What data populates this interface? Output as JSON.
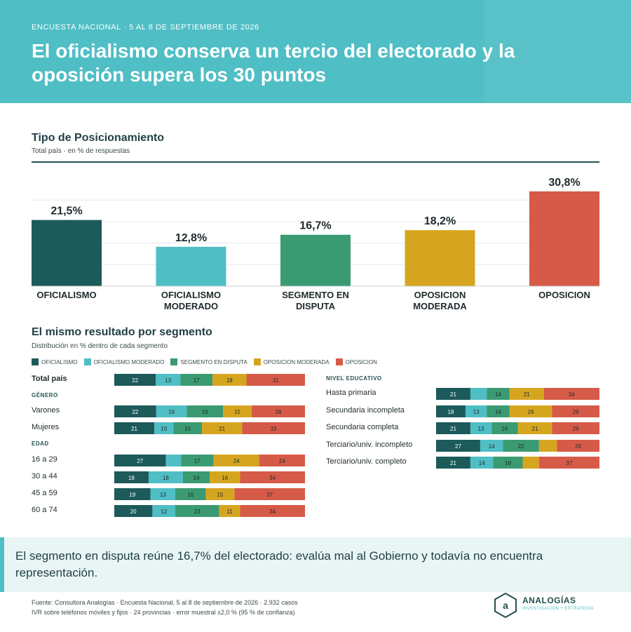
{
  "header": {
    "kicker": "ENCUESTA NACIONAL · 5 AL 8 DE SEPTIEMBRE DE 2026",
    "headline": "El oficialismo conserva un tercio del electorado y la oposición supera los 30 puntos"
  },
  "section1": {
    "title": "Tipo de Posicionamiento",
    "subtitle": "Total país · en % de respuestas"
  },
  "section2": {
    "title": "El mismo resultado por segmento",
    "subtitle": "Distribución en % dentro de cada segmento"
  },
  "colors": {
    "oficialismo": "#1d5a5a",
    "oficialismo_moderado": "#4fbec5",
    "segmento_disputa": "#3a9a72",
    "oposicion_moderada": "#d6a520",
    "oposicion": "#d65a48",
    "header": "#4fbec5"
  },
  "legend": [
    {
      "label": "OFICIALISMO",
      "color": "#1d5a5a"
    },
    {
      "label": "OFICIALISMO MODERADO",
      "color": "#4fbec5"
    },
    {
      "label": "SEGMENTO EN DISPUTA",
      "color": "#3a9a72"
    },
    {
      "label": "OPOSICION MODERADA",
      "color": "#d6a520"
    },
    {
      "label": "OPOSICION",
      "color": "#d65a48"
    }
  ],
  "chart_data": [
    {
      "type": "bar",
      "title": "Tipo de Posicionamiento",
      "subtitle": "Total país · en % de respuestas",
      "categories": [
        "OFICIALISMO",
        "OFICIALISMO MODERADO",
        "SEGMENTO EN DISPUTA",
        "OPOSICION MODERADA",
        "OPOSICION"
      ],
      "category_lines": [
        [
          "OFICIALISMO"
        ],
        [
          "OFICIALISMO",
          "MODERADO"
        ],
        [
          "SEGMENTO EN",
          "DISPUTA"
        ],
        [
          "OPOSICION",
          "MODERADA"
        ],
        [
          "OPOSICION"
        ]
      ],
      "values": [
        21.5,
        12.8,
        16.7,
        18.2,
        30.8
      ],
      "value_labels": [
        "21,5%",
        "12,8%",
        "16,7%",
        "18,2%",
        "30,8%"
      ],
      "ylim": [
        0,
        36
      ],
      "grid": true
    },
    {
      "type": "bar",
      "stacked": true,
      "orientation": "horizontal",
      "title": "El mismo resultado por segmento",
      "subtitle": "Distribución en % dentro de cada segmento",
      "series_names": [
        "OFICIALISMO",
        "OFICIALISMO MODERADO",
        "SEGMENTO EN DISPUTA",
        "OPOSICION MODERADA",
        "OPOSICION"
      ],
      "groups": [
        {
          "label": "",
          "rows": [
            {
              "label": "Total país",
              "values": [
                22,
                13,
                17,
                18,
                31
              ],
              "labels": [
                "22",
                "13",
                "17",
                "18",
                "31"
              ]
            }
          ]
        },
        {
          "label": "GÉNERO",
          "rows": [
            {
              "label": "Varones",
              "values": [
                22,
                16,
                19,
                15,
                28
              ],
              "labels": [
                "22",
                "16",
                "19",
                "15",
                "28"
              ]
            },
            {
              "label": "Mujeres",
              "values": [
                21,
                10,
                15,
                21,
                33
              ],
              "labels": [
                "21",
                "10",
                "15",
                "21",
                "33"
              ]
            }
          ]
        },
        {
          "label": "EDAD",
          "rows": [
            {
              "label": "16 a 29",
              "values": [
                27,
                8,
                17,
                24,
                24
              ],
              "labels": [
                "27",
                "",
                "17",
                "24",
                "24"
              ]
            },
            {
              "label": "30 a 44",
              "values": [
                18,
                18,
                14,
                16,
                34
              ],
              "labels": [
                "18",
                "18",
                "14",
                "16",
                "34"
              ]
            },
            {
              "label": "45 a 59",
              "values": [
                19,
                13,
                16,
                15,
                37
              ],
              "labels": [
                "19",
                "13",
                "16",
                "15",
                "37"
              ]
            },
            {
              "label": "60 a 74",
              "values": [
                20,
                12,
                23,
                11,
                34
              ],
              "labels": [
                "20",
                "12",
                "23",
                "11",
                "34"
              ]
            }
          ]
        },
        {
          "label": "NIVEL EDUCATIVO",
          "rows": [
            {
              "label": "Hasta primaria",
              "values": [
                21,
                10,
                14,
                21,
                34
              ],
              "labels": [
                "21",
                "",
                "14",
                "21",
                "34"
              ]
            },
            {
              "label": "Secundaria incompleta",
              "values": [
                18,
                13,
                14,
                26,
                29
              ],
              "labels": [
                "18",
                "13",
                "14",
                "26",
                "29"
              ]
            },
            {
              "label": "Secundaria completa",
              "values": [
                21,
                13,
                16,
                21,
                29
              ],
              "labels": [
                "21",
                "13",
                "16",
                "21",
                "29"
              ]
            },
            {
              "label": "Terciario/univ. incompleto",
              "values": [
                27,
                14,
                22,
                11,
                26
              ],
              "labels": [
                "27",
                "14",
                "22",
                "",
                "26"
              ]
            },
            {
              "label": "Terciario/univ. completo",
              "values": [
                21,
                14,
                18,
                10,
                37
              ],
              "labels": [
                "21",
                "14",
                "18",
                "",
                "37"
              ]
            }
          ]
        }
      ]
    }
  ],
  "callout": "El segmento en disputa reúne 16,7% del electorado: evalúa mal al Gobierno y todavía no encuentra representación.",
  "source": {
    "line1": "Fuente: Consultora Analogías · Encuesta Nacional, 5 al 8 de septiembre de 2026 · 2.932 casos",
    "line2": "IVR sobre teléfonos móviles y fijos · 24 provincias · error muestral ±2,0 % (95 % de confianza)"
  },
  "logo": {
    "mark": "a",
    "name": "ANALOGÍAS",
    "tagline": "INVESTIGACIÓN + ESTRATEGIA"
  }
}
